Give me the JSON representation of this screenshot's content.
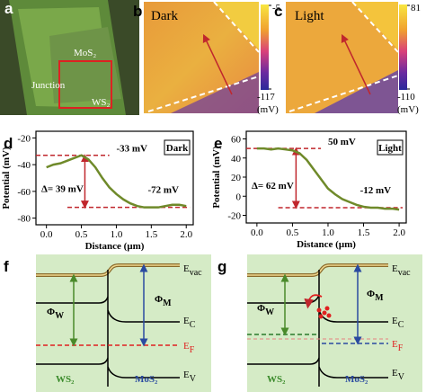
{
  "panels": {
    "a": {
      "letter": "a",
      "labels": [
        "MoS₂",
        "Junction",
        "WS₂"
      ]
    },
    "b": {
      "letter": "b",
      "label": "Dark",
      "colorbar": {
        "max": -5,
        "min": -117,
        "unit": "(mV)"
      }
    },
    "c": {
      "letter": "c",
      "label": "Light",
      "colorbar": {
        "max": 81,
        "min": -110,
        "unit": "(mV)"
      }
    },
    "f": {
      "letter": "f",
      "evac": {
        "main": "E",
        "sub": "vac"
      },
      "ec": {
        "main": "E",
        "sub": "C"
      },
      "ef": {
        "main": "E",
        "sub": "F"
      },
      "ev": {
        "main": "E",
        "sub": "V"
      },
      "phi_w": {
        "main": "Φ",
        "sub": "W"
      },
      "phi_m": {
        "main": "Φ",
        "sub": "M"
      },
      "left": "WS₂",
      "right": "MoS₂"
    },
    "g": {
      "letter": "g",
      "evac": {
        "main": "E",
        "sub": "vac"
      },
      "ec": {
        "main": "E",
        "sub": "C"
      },
      "ef": {
        "main": "E",
        "sub": "F"
      },
      "ev": {
        "main": "E",
        "sub": "V"
      },
      "phi_w": {
        "main": "Φ",
        "sub": "W"
      },
      "phi_m": {
        "main": "Φ",
        "sub": "M"
      },
      "left": "WS₂",
      "right": "MoS₂"
    }
  },
  "chart_data": [
    {
      "type": "line",
      "letter": "d",
      "box_label": "Dark",
      "xlabel": "Distance (μm)",
      "ylabel": "Potential (mV)",
      "x": [
        0,
        0.1,
        0.2,
        0.3,
        0.4,
        0.5,
        0.6,
        0.7,
        0.8,
        0.9,
        1.0,
        1.1,
        1.2,
        1.3,
        1.4,
        1.5,
        1.6,
        1.7,
        1.8,
        1.9,
        2.0
      ],
      "series": [
        {
          "color": "#6f8a2a",
          "values": [
            -42,
            -40,
            -39,
            -37,
            -35,
            -33,
            -36,
            -42,
            -50,
            -57,
            -62,
            -66,
            -69,
            -71,
            -72,
            -72,
            -72,
            -71,
            -70,
            -70,
            -71
          ]
        }
      ],
      "xlim": [
        -0.15,
        2.1
      ],
      "ylim": [
        -85,
        -15
      ],
      "xticks": [
        {
          "value": 0,
          "label": "0.0"
        },
        {
          "value": 0.5,
          "label": "0.5"
        },
        {
          "value": 1,
          "label": "1.0"
        },
        {
          "value": 1.5,
          "label": "1.5"
        },
        {
          "value": 2,
          "label": "2.0"
        }
      ],
      "yticks": [
        -80,
        -60,
        -40,
        -20
      ],
      "levels": [
        {
          "value": -33,
          "label": "-33 mV"
        },
        {
          "value": -72,
          "label": "-72 mV"
        }
      ],
      "delta": {
        "value": 39,
        "label": "Δ= 39 mV"
      }
    },
    {
      "type": "line",
      "letter": "e",
      "box_label": "Light",
      "xlabel": "Distance (μm)",
      "ylabel": "Potential (mV)",
      "x": [
        0,
        0.1,
        0.2,
        0.3,
        0.4,
        0.5,
        0.6,
        0.7,
        0.8,
        0.9,
        1.0,
        1.1,
        1.2,
        1.3,
        1.4,
        1.5,
        1.6,
        1.7,
        1.8,
        1.9,
        2.0
      ],
      "series": [
        {
          "color": "#6f8a2a",
          "values": [
            50,
            50,
            49,
            50,
            49,
            48,
            45,
            38,
            28,
            18,
            8,
            2,
            -3,
            -6,
            -9,
            -11,
            -12,
            -12,
            -13,
            -13,
            -14
          ]
        }
      ],
      "xlim": [
        -0.15,
        2.1
      ],
      "ylim": [
        -28,
        68
      ],
      "xticks": [
        {
          "value": 0,
          "label": "0.0"
        },
        {
          "value": 0.5,
          "label": "0.5"
        },
        {
          "value": 1,
          "label": "1.0"
        },
        {
          "value": 1.5,
          "label": "1.5"
        },
        {
          "value": 2,
          "label": "2.0"
        }
      ],
      "yticks": [
        -20,
        0,
        20,
        40,
        60
      ],
      "levels": [
        {
          "value": 50,
          "label": "50 mV"
        },
        {
          "value": -12,
          "label": "-12 mV"
        }
      ],
      "delta": {
        "value": 62,
        "label": "Δ= 62 mV"
      }
    }
  ]
}
